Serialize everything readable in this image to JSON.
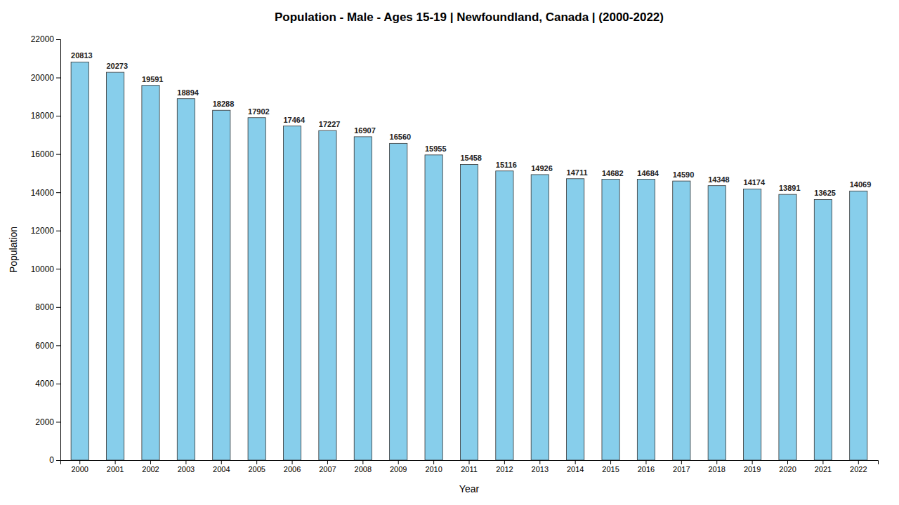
{
  "chart_data": {
    "type": "bar",
    "title": "Population - Male - Ages 15-19 | Newfoundland, Canada |  (2000-2022)",
    "x_label": "Year",
    "y_label": "Population",
    "categories": [
      "2000",
      "2001",
      "2002",
      "2003",
      "2004",
      "2005",
      "2006",
      "2007",
      "2008",
      "2009",
      "2010",
      "2011",
      "2012",
      "2013",
      "2014",
      "2015",
      "2016",
      "2017",
      "2018",
      "2019",
      "2020",
      "2021",
      "2022"
    ],
    "values": [
      20813,
      20273,
      19591,
      18894,
      18288,
      17902,
      17464,
      17227,
      16907,
      16560,
      15955,
      15458,
      15116,
      14926,
      14711,
      14682,
      14684,
      14590,
      14348,
      14174,
      13891,
      13625,
      14069
    ],
    "color": "#87CEEB",
    "ylim": [
      0,
      22000
    ],
    "yticks": [
      0,
      2000,
      4000,
      6000,
      8000,
      10000,
      12000,
      14000,
      16000,
      18000,
      20000,
      22000
    ],
    "grid": false,
    "data_labels": true
  }
}
